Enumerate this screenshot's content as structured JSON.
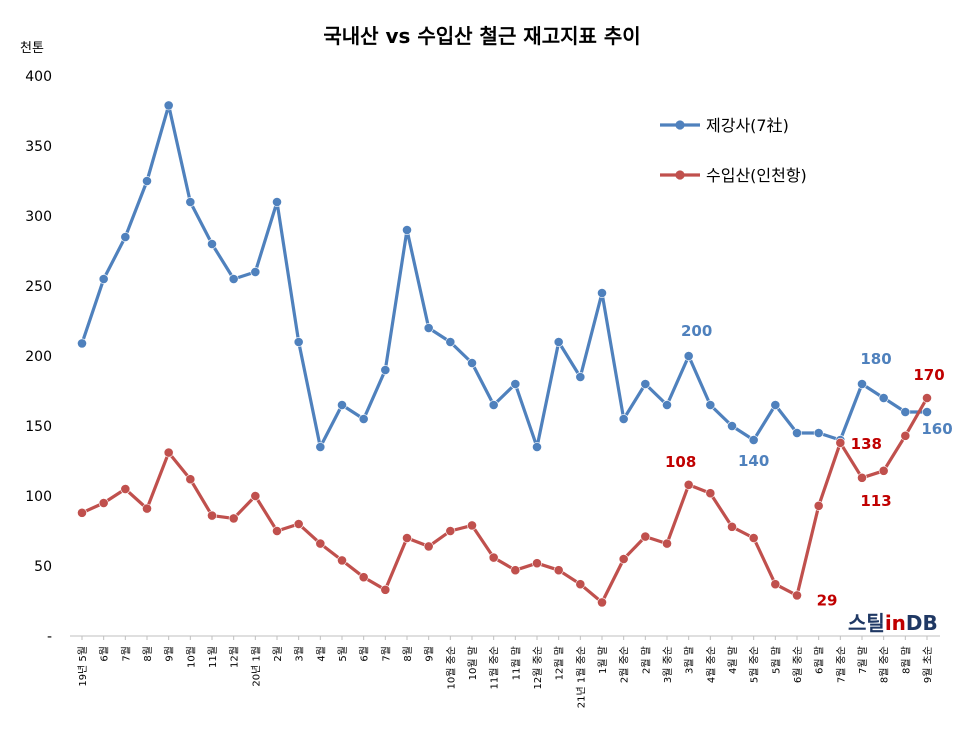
{
  "chart_data": {
    "type": "line",
    "title": "국내산 vs 수입산 철근 재고지표 추이",
    "unit_label": "천톤",
    "ylim": [
      0,
      400
    ],
    "yticks": [
      {
        "value": 0,
        "label": "-"
      },
      {
        "value": 50,
        "label": "50"
      },
      {
        "value": 100,
        "label": "100"
      },
      {
        "value": 150,
        "label": "150"
      },
      {
        "value": 200,
        "label": "200"
      },
      {
        "value": 250,
        "label": "250"
      },
      {
        "value": 300,
        "label": "300"
      },
      {
        "value": 350,
        "label": "350"
      },
      {
        "value": 400,
        "label": "400"
      }
    ],
    "grid": false,
    "legend_position": "top-right",
    "categories": [
      "19년 5월",
      "6월",
      "7월",
      "8월",
      "9월",
      "10월",
      "11월",
      "12월",
      "20년 1월",
      "2월",
      "3월",
      "4월",
      "5월",
      "6월",
      "7월",
      "8월",
      "9월",
      "10월 중순",
      "10월 말",
      "11월 중순",
      "11월 말",
      "12월 중순",
      "12월 말",
      "21년 1월 중순",
      "1월 말",
      "2월 중순",
      "2월 말",
      "3월 중순",
      "3월 말",
      "4월 중순",
      "4월 말",
      "5월 중순",
      "5월 말",
      "6월 중순",
      "6월 말",
      "7월 중순",
      "7월 말",
      "8월 중순",
      "8월 말",
      "9월 초순"
    ],
    "series": [
      {
        "name": "제강사(7社)",
        "color": "#4f81bd",
        "values": [
          209,
          255,
          285,
          325,
          379,
          310,
          280,
          255,
          260,
          310,
          210,
          135,
          165,
          155,
          190,
          290,
          220,
          210,
          195,
          165,
          180,
          135,
          210,
          185,
          245,
          155,
          180,
          165,
          200,
          165,
          150,
          140,
          165,
          145,
          145,
          140,
          180,
          170,
          160,
          160
        ]
      },
      {
        "name": "수입산(인천항)",
        "color": "#c0504d",
        "values": [
          88,
          95,
          105,
          91,
          131,
          112,
          86,
          84,
          100,
          75,
          80,
          66,
          54,
          42,
          33,
          70,
          64,
          75,
          79,
          56,
          47,
          52,
          47,
          37,
          24,
          55,
          71,
          66,
          108,
          102,
          78,
          70,
          37,
          29,
          93,
          138,
          113,
          118,
          143,
          170
        ]
      }
    ],
    "annotations": [
      {
        "series": 0,
        "index": 28,
        "text": "200"
      },
      {
        "series": 0,
        "index": 31,
        "text": "140"
      },
      {
        "series": 0,
        "index": 36,
        "text": "180"
      },
      {
        "series": 0,
        "index": 39,
        "text": "160"
      },
      {
        "series": 1,
        "index": 28,
        "text": "108"
      },
      {
        "series": 1,
        "index": 33,
        "text": "29"
      },
      {
        "series": 1,
        "index": 35,
        "text": "138"
      },
      {
        "series": 1,
        "index": 36,
        "text": "113"
      },
      {
        "series": 1,
        "index": 39,
        "text": "170"
      }
    ]
  },
  "logo": {
    "part1": "스틸",
    "part2": "in",
    "part3": "DB",
    "color_dark": "#1f3864",
    "color_accent": "#c00000"
  }
}
